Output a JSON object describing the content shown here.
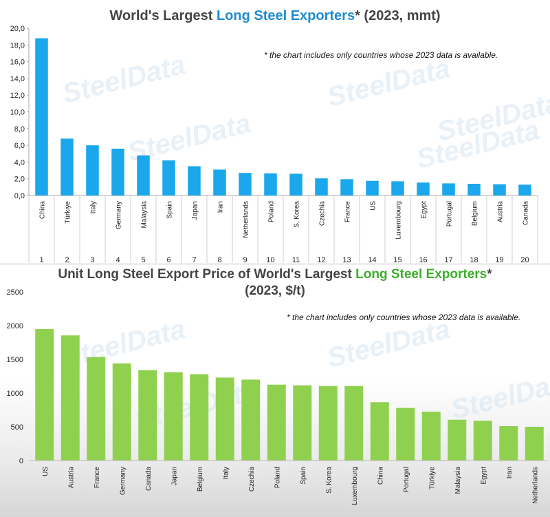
{
  "top": {
    "title_part1": "World's Largest ",
    "title_part2": "Long Steel Exporters",
    "title_part3": "* (2023, mmt)",
    "note": "* the chart includes only countries whose 2023 data is available.",
    "watermark": "SteelData"
  },
  "bottom": {
    "title_part1": "Unit Long Steel Export Price of World's Largest ",
    "title_part2": "Long Steel Exporters",
    "title_part3": "*",
    "title_line2": "(2023, $/t)",
    "note": "* the chart includes only countries whose 2023 data is available.",
    "watermark": "SteelData"
  },
  "chart_data": [
    {
      "type": "bar",
      "title": "World's Largest Long Steel Exporters* (2023, mmt)",
      "categories": [
        "China",
        "Türkiye",
        "Italy",
        "Germany",
        "Malaysia",
        "Spain",
        "Japan",
        "Iran",
        "Netherlands",
        "Poland",
        "S. Korea",
        "Czechia",
        "France",
        "US",
        "Luxembourg",
        "Egypt",
        "Portugal",
        "Belgium",
        "Austria",
        "Canada"
      ],
      "ranks": [
        "1",
        "2",
        "3",
        "4",
        "5",
        "6",
        "7",
        "8",
        "9",
        "10",
        "11",
        "12",
        "13",
        "14",
        "15",
        "16",
        "17",
        "18",
        "19",
        "20"
      ],
      "values": [
        18.8,
        6.8,
        6.0,
        5.6,
        4.8,
        4.2,
        3.5,
        3.1,
        2.7,
        2.65,
        2.6,
        2.05,
        1.95,
        1.75,
        1.7,
        1.55,
        1.45,
        1.4,
        1.35,
        1.3
      ],
      "ylim": [
        0,
        20
      ],
      "yticks": [
        "0,0",
        "2,0",
        "4,0",
        "6,0",
        "8,0",
        "10,0",
        "12,0",
        "14,0",
        "16,0",
        "18,0",
        "20,0"
      ],
      "grid": false,
      "bar_color": "#1aa7ec"
    },
    {
      "type": "bar",
      "title": "Unit Long Steel Export Price of World's Largest Long Steel Exporters* (2023, $/t)",
      "categories": [
        "US",
        "Austria",
        "France",
        "Germany",
        "Canada",
        "Japan",
        "Belgium",
        "Italy",
        "Czechia",
        "Poland",
        "Spain",
        "S. Korea",
        "Luxembourg",
        "China",
        "Portugal",
        "Türkiye",
        "Malaysia",
        "Egypt",
        "Iran",
        "Netherlands"
      ],
      "values": [
        1950,
        1855,
        1535,
        1440,
        1340,
        1310,
        1280,
        1230,
        1200,
        1125,
        1115,
        1105,
        1105,
        865,
        780,
        725,
        605,
        590,
        510,
        500
      ],
      "ylim": [
        0,
        2500
      ],
      "yticks": [
        "0",
        "500",
        "1000",
        "1500",
        "2000",
        "2500"
      ],
      "grid": false,
      "bar_color": "#8fd14f"
    }
  ]
}
